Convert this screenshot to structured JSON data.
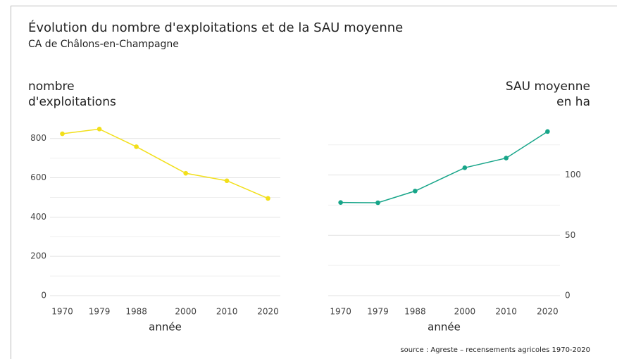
{
  "title": "Évolution du nombre d'exploitations et de la SAU moyenne",
  "subtitle": "CA de Châlons-en-Champagne",
  "source": "source : Agreste – recensements agricoles 1970-2020",
  "chart_data": [
    {
      "type": "line",
      "y_label": [
        "nombre",
        "d'exploitations"
      ],
      "x_label": "année",
      "x": [
        1970,
        1979,
        1988,
        2000,
        2010,
        2020
      ],
      "series": [
        {
          "color": "#f2df1a",
          "values": [
            824,
            848,
            758,
            623,
            585,
            495
          ]
        }
      ],
      "xlim": [
        1967,
        2023
      ],
      "xticks": [
        1970,
        1979,
        1988,
        2000,
        2010,
        2020
      ],
      "ylim": [
        0,
        860
      ],
      "yticks": [
        0,
        200,
        400,
        600,
        800
      ],
      "minor_yticks": [
        100,
        300,
        500,
        700
      ],
      "grid": true,
      "y_axis_side": "left"
    },
    {
      "type": "line",
      "y_label": [
        "SAU moyenne",
        "en ha"
      ],
      "x_label": "année",
      "x": [
        1970,
        1979,
        1988,
        2000,
        2010,
        2020
      ],
      "series": [
        {
          "color": "#17a589",
          "values": [
            77.2,
            77,
            86.7,
            106,
            114,
            136
          ]
        }
      ],
      "xlim": [
        1967,
        2023
      ],
      "xticks": [
        1970,
        1979,
        1988,
        2000,
        2010,
        2020
      ],
      "ylim": [
        0,
        140
      ],
      "yticks": [
        0,
        50,
        100
      ],
      "minor_yticks": [
        25,
        75,
        125
      ],
      "grid": true,
      "y_axis_side": "right"
    }
  ]
}
